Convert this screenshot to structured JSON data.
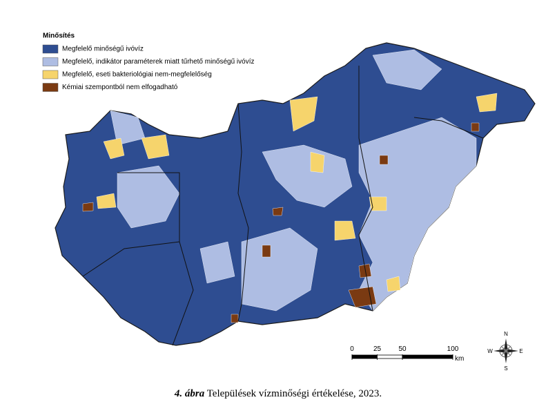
{
  "legend": {
    "title": "Minősítés",
    "items": [
      {
        "label": "Megfelelő minőségű ivóvíz",
        "color": "#2e4d91"
      },
      {
        "label": "Megfelelő, indikátor paraméterek miatt tűrhető minőségű ivóvíz",
        "color": "#aebde3"
      },
      {
        "label": "Megfelelő, eseti bakteriológiai nem-megfelelőség",
        "color": "#f6d46c"
      },
      {
        "label": "Kémiai szempontból nem elfogadható",
        "color": "#7a3a12"
      }
    ]
  },
  "scale_bar": {
    "ticks": [
      0,
      25,
      50,
      100
    ],
    "unit": "km"
  },
  "compass": {
    "n": "N",
    "e": "E",
    "s": "S",
    "w": "W"
  },
  "caption": {
    "number": "4. ábra",
    "text": "Települések vízminőségi értékelése, 2023."
  }
}
